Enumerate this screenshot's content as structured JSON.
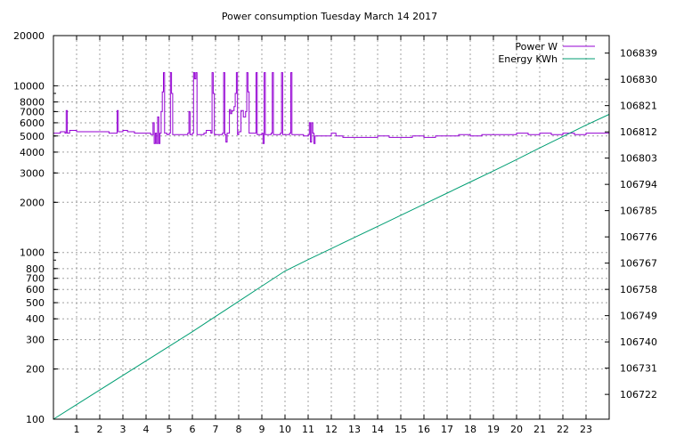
{
  "chart_data": {
    "type": "line",
    "title": "Power consumption Tuesday March 14 2017",
    "grid": true,
    "legend_position": "top-right",
    "x": {
      "label": "",
      "range": [
        0,
        24
      ],
      "ticks": [
        1,
        2,
        3,
        4,
        5,
        6,
        7,
        8,
        9,
        10,
        11,
        12,
        13,
        14,
        15,
        16,
        17,
        18,
        19,
        20,
        21,
        22,
        23
      ]
    },
    "y_left": {
      "label": "",
      "scale": "log",
      "range": [
        100,
        20000
      ],
      "ticks": [
        100,
        200,
        300,
        400,
        500,
        600,
        700,
        800,
        1000,
        2000,
        3000,
        4000,
        5000,
        6000,
        7000,
        8000,
        10000,
        20000
      ],
      "tick_labels": [
        "100",
        "200",
        "300",
        "400",
        "500",
        "600",
        "700",
        "800",
        "1000",
        "2000",
        "3000",
        "4000",
        "5000",
        "6000",
        "7000",
        "8000",
        "10000",
        "20000"
      ]
    },
    "y_right": {
      "label": "",
      "scale": "linear",
      "range": [
        106713.5,
        106845
      ],
      "ticks": [
        106722,
        106731,
        106740,
        106749,
        106758,
        106767,
        106776,
        106785,
        106794,
        106803,
        106812,
        106821,
        106830,
        106839
      ]
    },
    "series": [
      {
        "name": "Power W",
        "axis": "left",
        "color": "#9400d3",
        "points": [
          [
            0.0,
            5200
          ],
          [
            0.3,
            5300
          ],
          [
            0.5,
            5200
          ],
          [
            0.55,
            7100
          ],
          [
            0.6,
            5200
          ],
          [
            0.7,
            5400
          ],
          [
            1.0,
            5300
          ],
          [
            2.0,
            5300
          ],
          [
            2.4,
            5200
          ],
          [
            2.7,
            5200
          ],
          [
            2.75,
            7100
          ],
          [
            2.8,
            5300
          ],
          [
            3.0,
            5400
          ],
          [
            3.2,
            5300
          ],
          [
            3.5,
            5200
          ],
          [
            4.0,
            5200
          ],
          [
            4.2,
            5100
          ],
          [
            4.3,
            6000
          ],
          [
            4.35,
            4500
          ],
          [
            4.4,
            5200
          ],
          [
            4.45,
            4500
          ],
          [
            4.5,
            6500
          ],
          [
            4.55,
            4500
          ],
          [
            4.6,
            5200
          ],
          [
            4.65,
            7000
          ],
          [
            4.7,
            9200
          ],
          [
            4.75,
            12000
          ],
          [
            4.8,
            5200
          ],
          [
            4.9,
            5100
          ],
          [
            5.0,
            5200
          ],
          [
            5.05,
            12000
          ],
          [
            5.1,
            9000
          ],
          [
            5.15,
            5100
          ],
          [
            5.5,
            5100
          ],
          [
            5.8,
            5200
          ],
          [
            5.85,
            7000
          ],
          [
            5.9,
            5100
          ],
          [
            6.0,
            5200
          ],
          [
            6.05,
            12000
          ],
          [
            6.1,
            11000
          ],
          [
            6.15,
            12000
          ],
          [
            6.2,
            5100
          ],
          [
            6.5,
            5200
          ],
          [
            6.6,
            5400
          ],
          [
            6.8,
            5200
          ],
          [
            6.85,
            12000
          ],
          [
            6.9,
            9000
          ],
          [
            6.95,
            5100
          ],
          [
            7.3,
            5200
          ],
          [
            7.35,
            12000
          ],
          [
            7.4,
            5100
          ],
          [
            7.45,
            4600
          ],
          [
            7.5,
            5200
          ],
          [
            7.6,
            7200
          ],
          [
            7.65,
            6800
          ],
          [
            7.7,
            7100
          ],
          [
            7.8,
            7500
          ],
          [
            7.85,
            9000
          ],
          [
            7.9,
            12000
          ],
          [
            7.95,
            5100
          ],
          [
            8.0,
            5300
          ],
          [
            8.1,
            7100
          ],
          [
            8.2,
            6500
          ],
          [
            8.3,
            7000
          ],
          [
            8.35,
            12000
          ],
          [
            8.4,
            9200
          ],
          [
            8.45,
            5200
          ],
          [
            8.7,
            5200
          ],
          [
            8.75,
            12000
          ],
          [
            8.8,
            5100
          ],
          [
            9.0,
            5200
          ],
          [
            9.05,
            4500
          ],
          [
            9.1,
            12000
          ],
          [
            9.15,
            5100
          ],
          [
            9.4,
            5200
          ],
          [
            9.45,
            12000
          ],
          [
            9.5,
            5100
          ],
          [
            9.8,
            5200
          ],
          [
            9.85,
            12000
          ],
          [
            9.9,
            5100
          ],
          [
            10.2,
            5200
          ],
          [
            10.25,
            12000
          ],
          [
            10.3,
            5100
          ],
          [
            10.6,
            5100
          ],
          [
            10.8,
            5000
          ],
          [
            11.0,
            5100
          ],
          [
            11.05,
            6000
          ],
          [
            11.1,
            4600
          ],
          [
            11.15,
            6000
          ],
          [
            11.2,
            5200
          ],
          [
            11.25,
            4500
          ],
          [
            11.3,
            5000
          ],
          [
            11.6,
            5000
          ],
          [
            12.0,
            5200
          ],
          [
            12.2,
            5000
          ],
          [
            12.5,
            4900
          ],
          [
            12.8,
            4900
          ],
          [
            13.0,
            4900
          ],
          [
            13.3,
            4900
          ],
          [
            13.6,
            4900
          ],
          [
            14.0,
            5000
          ],
          [
            14.5,
            4900
          ],
          [
            14.8,
            4900
          ],
          [
            15.0,
            4900
          ],
          [
            15.5,
            5000
          ],
          [
            16.0,
            4900
          ],
          [
            16.5,
            5000
          ],
          [
            17.0,
            5000
          ],
          [
            17.5,
            5100
          ],
          [
            18.0,
            5000
          ],
          [
            18.5,
            5100
          ],
          [
            19.0,
            5100
          ],
          [
            19.5,
            5100
          ],
          [
            20.0,
            5200
          ],
          [
            20.5,
            5100
          ],
          [
            21.0,
            5200
          ],
          [
            21.5,
            5100
          ],
          [
            22.0,
            5200
          ],
          [
            22.5,
            5100
          ],
          [
            23.0,
            5200
          ],
          [
            23.5,
            5200
          ],
          [
            24.0,
            5100
          ]
        ]
      },
      {
        "name": "Energy KWh",
        "axis": "right",
        "color": "#009e73",
        "points": [
          [
            0,
            106713.5
          ],
          [
            1,
            106718.5
          ],
          [
            2,
            106723.5
          ],
          [
            3,
            106728.5
          ],
          [
            4,
            106733.5
          ],
          [
            5,
            106738.5
          ],
          [
            6,
            106743.5
          ],
          [
            7,
            106748.7
          ],
          [
            8,
            106753.9
          ],
          [
            9,
            106759.1
          ],
          [
            10,
            106764.3
          ],
          [
            11,
            106768.2
          ],
          [
            12,
            106772.0
          ],
          [
            13,
            106775.8
          ],
          [
            14,
            106779.6
          ],
          [
            15,
            106783.4
          ],
          [
            16,
            106787.2
          ],
          [
            17,
            106791.0
          ],
          [
            18,
            106794.8
          ],
          [
            19,
            106798.6
          ],
          [
            20,
            106802.5
          ],
          [
            21,
            106806.5
          ],
          [
            22,
            106810.4
          ],
          [
            23,
            106814.3
          ],
          [
            24,
            106818.0
          ]
        ]
      }
    ]
  }
}
